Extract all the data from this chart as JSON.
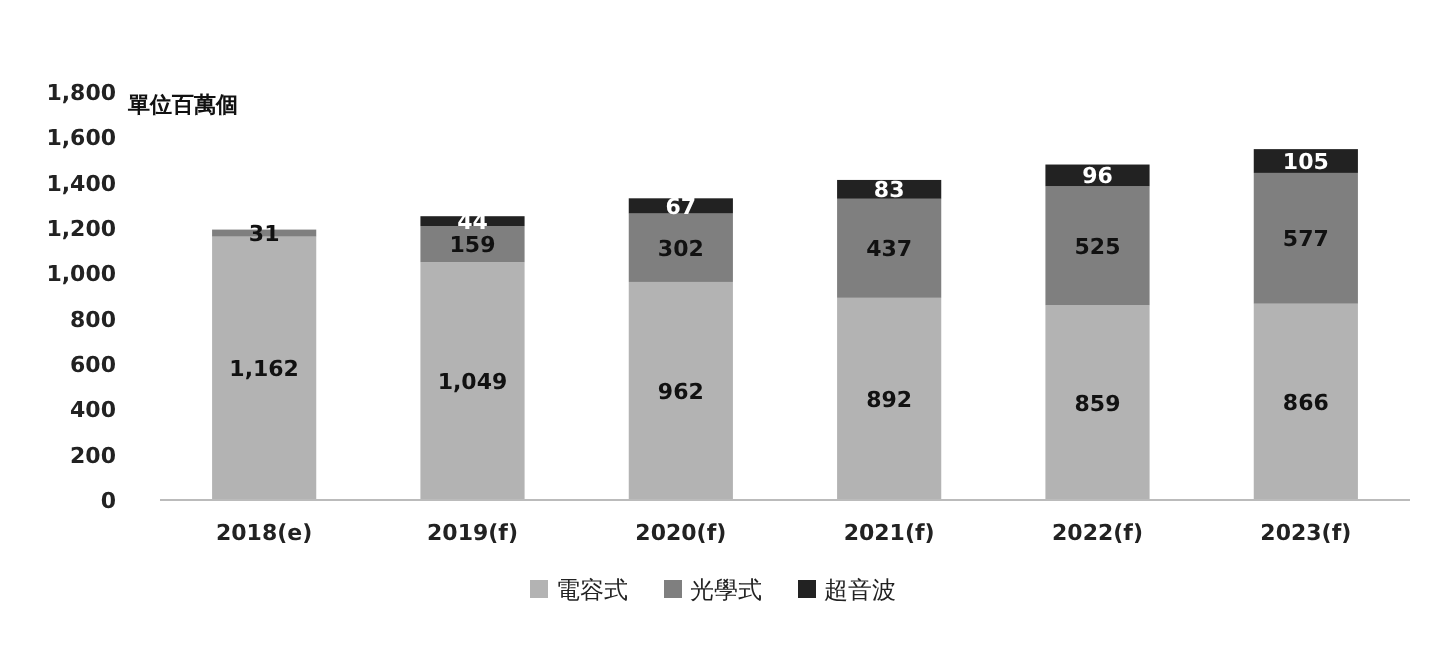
{
  "chart_data": {
    "type": "bar",
    "stacked": true,
    "ylabel": "單位百萬個",
    "categories": [
      "2018(e)",
      "2019(f)",
      "2020(f)",
      "2021(f)",
      "2022(f)",
      "2023(f)"
    ],
    "series": [
      {
        "name": "電容式",
        "color": "#b3b3b3",
        "values": [
          1162,
          1049,
          962,
          892,
          859,
          866
        ],
        "value_labels": [
          "1,162",
          "1,049",
          "962",
          "892",
          "859",
          "866"
        ]
      },
      {
        "name": "光學式",
        "color": "#7f7f7f",
        "values": [
          31,
          159,
          302,
          437,
          525,
          577
        ],
        "value_labels": [
          "31",
          "159",
          "302",
          "437",
          "525",
          "577"
        ]
      },
      {
        "name": "超音波",
        "color": "#222222",
        "values": [
          null,
          44,
          67,
          83,
          96,
          105
        ],
        "value_labels": [
          null,
          "44",
          "67",
          "83",
          "96",
          "105"
        ]
      }
    ],
    "ylim": [
      0,
      1800
    ],
    "yticks": [
      0,
      200,
      400,
      600,
      800,
      {
        "value": 1000,
        "label": "1,000"
      },
      {
        "value": 1200,
        "label": "1,200"
      },
      {
        "value": 1400,
        "label": "1,400"
      },
      {
        "value": 1600,
        "label": "1,600"
      },
      {
        "value": 1800,
        "label": "1,800"
      }
    ],
    "legend": "bottom"
  }
}
